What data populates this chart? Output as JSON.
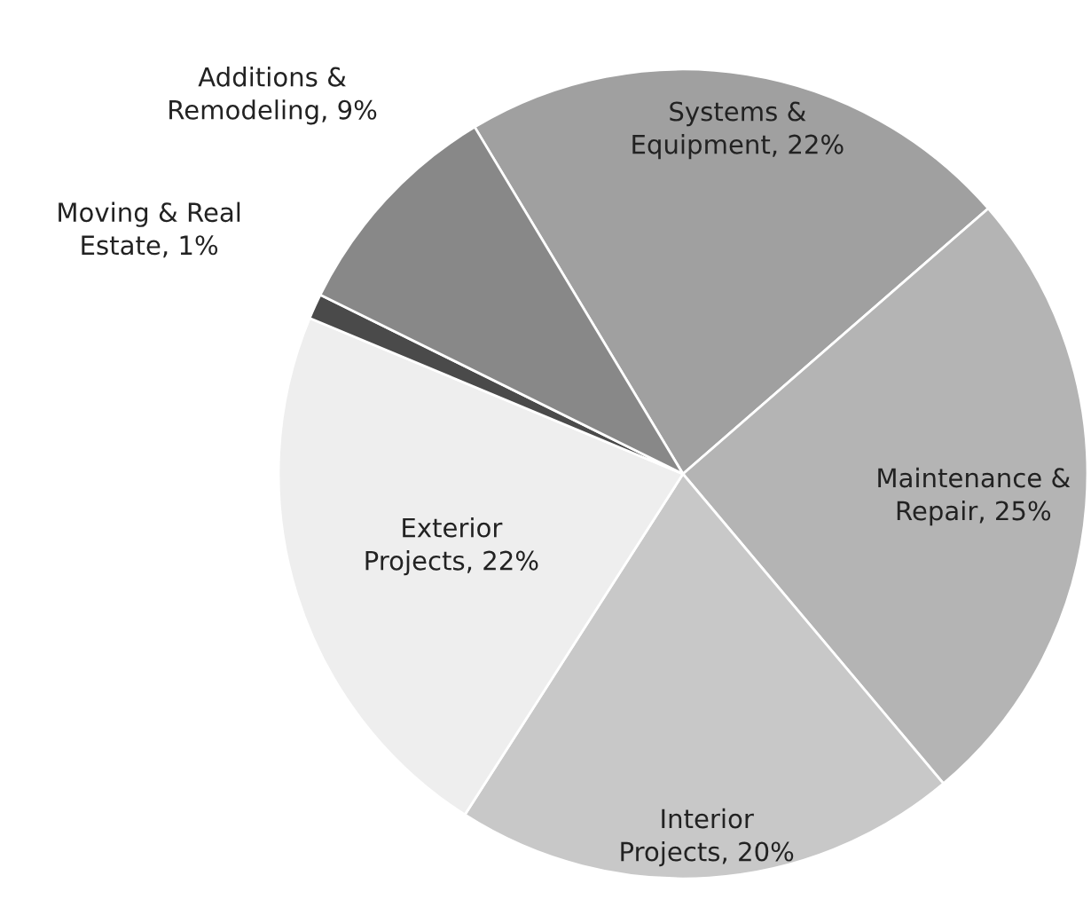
{
  "chart_data": {
    "type": "pie",
    "categories": [
      "Systems &\nEquipment",
      "Maintenance &\nRepair",
      "Interior\nProjects",
      "Exterior\nProjects",
      "Moving & Real\nEstate",
      "Additions &\nRemodeling"
    ],
    "value_labels": [
      "22%",
      "25%",
      "20%",
      "22%",
      "1%",
      "9%"
    ],
    "values": [
      22,
      25,
      20,
      22,
      1,
      9
    ],
    "colors": [
      "#a0a0a0",
      "#b4b4b4",
      "#c8c8c8",
      "#eeeeee",
      "#4a4a4a",
      "#888888"
    ],
    "legend": false
  }
}
